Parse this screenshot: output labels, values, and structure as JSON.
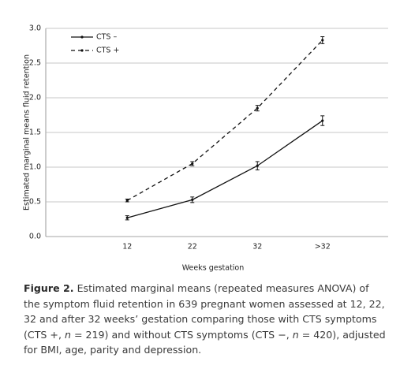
{
  "chart_data": {
    "type": "line",
    "categories": [
      "12",
      "22",
      "32",
      ">32"
    ],
    "series": [
      {
        "name": "CTS –",
        "color": "#111111",
        "line_style": "solid",
        "values": [
          0.27,
          0.53,
          1.02,
          1.67
        ],
        "errors": [
          0.03,
          0.04,
          0.06,
          0.07
        ]
      },
      {
        "name": "CTS +",
        "color": "#111111",
        "line_style": "dashed",
        "values": [
          0.52,
          1.05,
          1.85,
          2.83
        ],
        "errors": [
          0.02,
          0.03,
          0.04,
          0.05
        ]
      }
    ],
    "ylim": [
      0,
      3
    ],
    "yticks": [
      {
        "value": 0,
        "label": "0.0"
      },
      0.5,
      {
        "value": 1,
        "label": "1.0"
      },
      1.5,
      {
        "value": 2,
        "label": "2.0"
      },
      2.5,
      {
        "value": 3,
        "label": "3.0"
      }
    ],
    "grid": true,
    "legend": "top-left",
    "xlabel": "Weeks gestation",
    "ylabel": "Estimated marginal means fluid retention"
  },
  "caption": {
    "label": "Figure 2.",
    "parts": [
      " Estimated marginal means (repeated measures ANOVA) of the symptom fluid retention in 639 pregnant women assessed at 12, 22, 32 and after 32 weeks’ gestation comparing those with CTS symptoms (CTS +, ",
      "n",
      " = 219) and without CTS symptoms (CTS −, ",
      "n",
      " = 420), adjusted for BMI, age, parity and depression."
    ]
  }
}
